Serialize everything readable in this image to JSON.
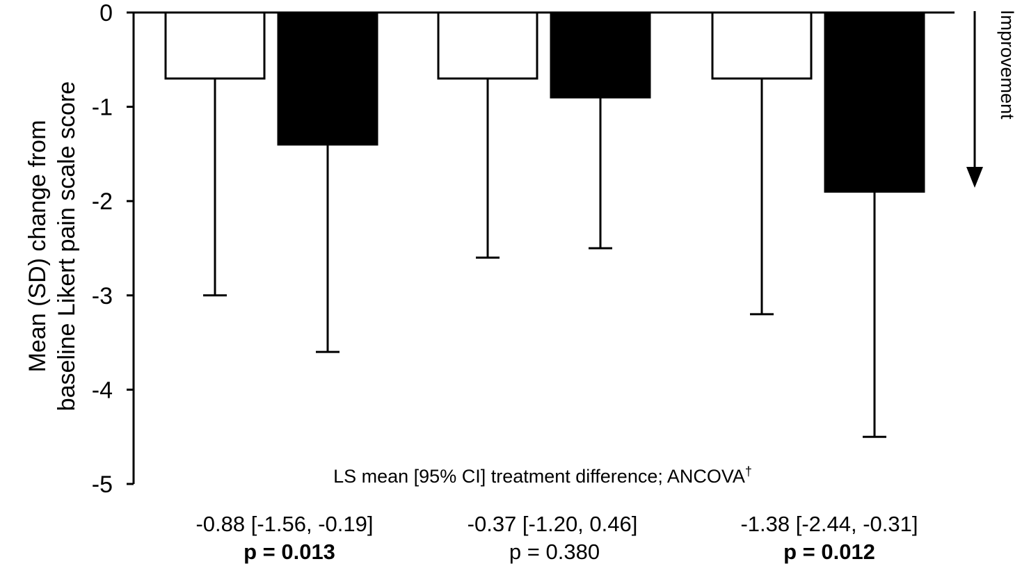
{
  "chart_data": {
    "type": "bar",
    "title": "",
    "ylabel_line1": "Mean (SD) change from",
    "ylabel_line2": "baseline  Likert pain scale score",
    "ylim": [
      -5,
      0
    ],
    "yticks": [
      0,
      -1,
      -2,
      -3,
      -4,
      -5
    ],
    "yticklabels": [
      "0",
      "-1",
      "-2",
      "-3",
      "-4",
      "-5"
    ],
    "grid": false,
    "legend": "none",
    "groups": [
      {
        "bars": [
          {
            "fill": "#ffffff",
            "value": -0.7,
            "sd_low": -3.0
          },
          {
            "fill": "#000000",
            "value": -1.4,
            "sd_low": -3.6
          }
        ],
        "difference": "-0.88 [-1.56, -0.19]",
        "p": "p = 0.013",
        "p_bold": true
      },
      {
        "bars": [
          {
            "fill": "#ffffff",
            "value": -0.7,
            "sd_low": -2.6
          },
          {
            "fill": "#000000",
            "value": -0.9,
            "sd_low": -2.5
          }
        ],
        "difference": "-0.37 [-1.20, 0.46]",
        "p": "p = 0.380",
        "p_bold": false
      },
      {
        "bars": [
          {
            "fill": "#ffffff",
            "value": -0.7,
            "sd_low": -3.2
          },
          {
            "fill": "#000000",
            "value": -1.9,
            "sd_low": -4.5
          }
        ],
        "difference": "-1.38 [-2.44, -0.31]",
        "p": "p = 0.012",
        "p_bold": true
      }
    ],
    "annotation_direction": "Improvement",
    "difference_title": "LS mean [95% CI] treatment difference; ANCOVA",
    "difference_title_mark": "†"
  }
}
